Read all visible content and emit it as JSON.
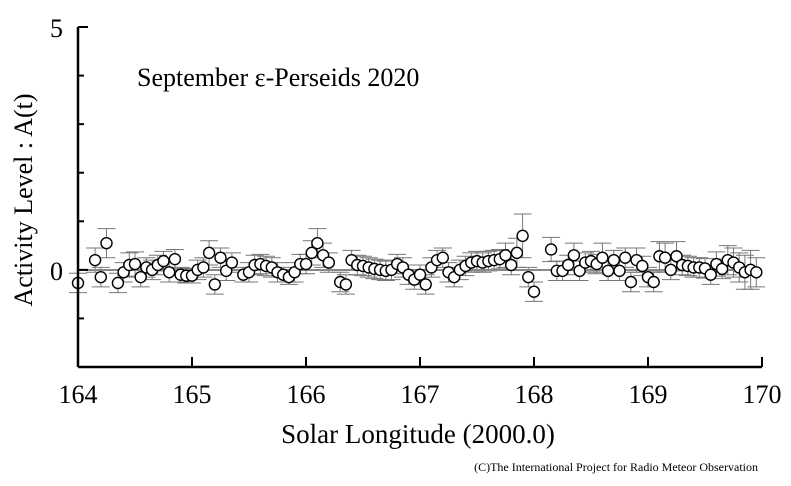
{
  "chart_data": {
    "type": "scatter",
    "title": "September ε-Perseids 2020",
    "xlabel": "Solar Longitude (2000.0)",
    "ylabel": "Activity Level : A(t)",
    "xlim": [
      164,
      170
    ],
    "ylim": [
      -2,
      5
    ],
    "xticks": [
      "164",
      "165",
      "166",
      "167",
      "168",
      "169",
      "170"
    ],
    "yticks": [
      "5",
      "0"
    ],
    "credit": "(C)The International Project for Radio Meteor Observation",
    "points": [
      [
        164.0,
        -0.27,
        0.2
      ],
      [
        164.15,
        0.2,
        0.25
      ],
      [
        164.2,
        -0.15,
        0.2
      ],
      [
        164.25,
        0.55,
        0.3
      ],
      [
        164.35,
        -0.27,
        0.2
      ],
      [
        164.4,
        -0.05,
        0.2
      ],
      [
        164.45,
        0.1,
        0.25
      ],
      [
        164.5,
        0.12,
        0.25
      ],
      [
        164.55,
        -0.15,
        0.2
      ],
      [
        164.6,
        0.05,
        0.2
      ],
      [
        164.65,
        0,
        0.2
      ],
      [
        164.7,
        0.1,
        0.2
      ],
      [
        164.75,
        0.18,
        0.2
      ],
      [
        164.8,
        -0.05,
        0.2
      ],
      [
        164.85,
        0.22,
        0.2
      ],
      [
        164.9,
        -0.1,
        0.15
      ],
      [
        164.95,
        -0.12,
        0.15
      ],
      [
        165.0,
        -0.12,
        0.15
      ],
      [
        165.05,
        0,
        0.2
      ],
      [
        165.1,
        0.05,
        0.2
      ],
      [
        165.15,
        0.35,
        0.25
      ],
      [
        165.2,
        -0.3,
        0.2
      ],
      [
        165.25,
        0.25,
        0.2
      ],
      [
        165.3,
        -0.02,
        0.2
      ],
      [
        165.35,
        0.15,
        0.2
      ],
      [
        165.45,
        -0.1,
        0.15
      ],
      [
        165.5,
        -0.05,
        0.2
      ],
      [
        165.55,
        0.1,
        0.2
      ],
      [
        165.6,
        0.12,
        0.2
      ],
      [
        165.65,
        0.08,
        0.2
      ],
      [
        165.7,
        0.05,
        0.2
      ],
      [
        165.75,
        -0.05,
        0.2
      ],
      [
        165.8,
        -0.1,
        0.15
      ],
      [
        165.85,
        -0.15,
        0.15
      ],
      [
        165.9,
        -0.05,
        0.2
      ],
      [
        165.95,
        0.12,
        0.2
      ],
      [
        166.0,
        0.12,
        0.2
      ],
      [
        166.05,
        0.35,
        0.25
      ],
      [
        166.1,
        0.55,
        0.3
      ],
      [
        166.15,
        0.3,
        0.25
      ],
      [
        166.2,
        0.15,
        0.2
      ],
      [
        166.3,
        -0.25,
        0.2
      ],
      [
        166.35,
        -0.3,
        0.2
      ],
      [
        166.4,
        0.2,
        0.2
      ],
      [
        166.45,
        0.1,
        0.2
      ],
      [
        166.5,
        0.08,
        0.2
      ],
      [
        166.55,
        0.05,
        0.2
      ],
      [
        166.6,
        0.02,
        0.2
      ],
      [
        166.65,
        0,
        0.2
      ],
      [
        166.7,
        -0.02,
        0.2
      ],
      [
        166.75,
        0,
        0.2
      ],
      [
        166.8,
        0.12,
        0.2
      ],
      [
        166.85,
        0.05,
        0.2
      ],
      [
        166.9,
        -0.1,
        0.2
      ],
      [
        166.95,
        -0.2,
        0.2
      ],
      [
        167.0,
        -0.1,
        0.2
      ],
      [
        167.05,
        -0.3,
        0.2
      ],
      [
        167.1,
        0.05,
        0.2
      ],
      [
        167.15,
        0.2,
        0.2
      ],
      [
        167.2,
        0.25,
        0.2
      ],
      [
        167.25,
        -0.05,
        0.2
      ],
      [
        167.3,
        -0.15,
        0.2
      ],
      [
        167.35,
        0,
        0.2
      ],
      [
        167.4,
        0.08,
        0.2
      ],
      [
        167.45,
        0.15,
        0.2
      ],
      [
        167.5,
        0.18,
        0.2
      ],
      [
        167.55,
        0.15,
        0.2
      ],
      [
        167.6,
        0.18,
        0.2
      ],
      [
        167.65,
        0.2,
        0.2
      ],
      [
        167.7,
        0.22,
        0.2
      ],
      [
        167.75,
        0.3,
        0.25
      ],
      [
        167.8,
        0.1,
        0.2
      ],
      [
        167.85,
        0.35,
        0.3
      ],
      [
        167.9,
        0.7,
        0.45
      ],
      [
        167.95,
        -0.15,
        0.2
      ],
      [
        168.0,
        -0.45,
        0.2
      ],
      [
        168.15,
        0.42,
        0.25
      ],
      [
        168.2,
        -0.02,
        0.2
      ],
      [
        168.25,
        -0.02,
        0.2
      ],
      [
        168.3,
        0.1,
        0.2
      ],
      [
        168.35,
        0.3,
        0.25
      ],
      [
        168.4,
        -0.02,
        0.2
      ],
      [
        168.45,
        0.15,
        0.2
      ],
      [
        168.5,
        0.18,
        0.2
      ],
      [
        168.55,
        0.12,
        0.2
      ],
      [
        168.6,
        0.25,
        0.3
      ],
      [
        168.65,
        -0.02,
        0.2
      ],
      [
        168.7,
        0.2,
        0.2
      ],
      [
        168.75,
        -0.02,
        0.2
      ],
      [
        168.8,
        0.25,
        0.2
      ],
      [
        168.85,
        -0.25,
        0.2
      ],
      [
        168.9,
        0.2,
        0.25
      ],
      [
        168.95,
        0.08,
        0.2
      ],
      [
        169.0,
        -0.15,
        0.2
      ],
      [
        169.05,
        -0.25,
        0.2
      ],
      [
        169.1,
        0.28,
        0.3
      ],
      [
        169.15,
        0.25,
        0.3
      ],
      [
        169.2,
        0,
        0.2
      ],
      [
        169.25,
        0.28,
        0.3
      ],
      [
        169.3,
        0.1,
        0.2
      ],
      [
        169.35,
        0.08,
        0.2
      ],
      [
        169.4,
        0.05,
        0.2
      ],
      [
        169.45,
        0.05,
        0.2
      ],
      [
        169.5,
        0.03,
        0.2
      ],
      [
        169.55,
        -0.1,
        0.2
      ],
      [
        169.6,
        0.12,
        0.25
      ],
      [
        169.65,
        0.02,
        0.2
      ],
      [
        169.7,
        0.2,
        0.3
      ],
      [
        169.75,
        0.15,
        0.3
      ],
      [
        169.8,
        0.05,
        0.3
      ],
      [
        169.85,
        -0.05,
        0.35
      ],
      [
        169.9,
        0,
        0.4
      ],
      [
        169.95,
        -0.05,
        0.3
      ]
    ]
  }
}
